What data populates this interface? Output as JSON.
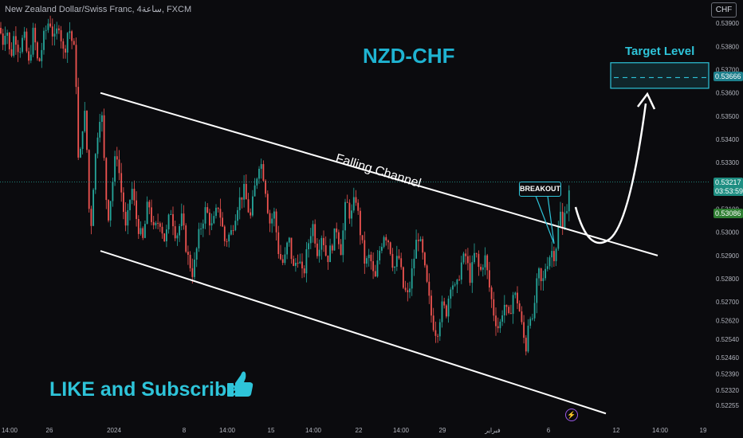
{
  "header": {
    "symbol_title": "New Zealand Dollar/Swiss Franc, 4ساعة, FXCM",
    "currency": "CHF"
  },
  "annotations": {
    "title": "NZD-CHF",
    "channel_label": "Falling Channel",
    "breakout_label": "BREAKOUT",
    "target_label": "Target Level",
    "cta": "LIKE and Subscribe"
  },
  "price_tags": {
    "target": "0.53666",
    "current": "0.53217",
    "countdown": "03:53:59",
    "previous": "0.53086"
  },
  "icons": {
    "cta": "thumbs-up-icon",
    "alert": "lightning-icon"
  },
  "colors": {
    "bull": "#26a69a",
    "bear": "#ef5350",
    "accent": "#2ec4d9",
    "channel": "#ffffff",
    "background": "#0b0b0e"
  },
  "chart_data": {
    "type": "candlestick",
    "y_ticks": [
      "0.53900",
      "0.53800",
      "0.53700",
      "0.53600",
      "0.53500",
      "0.53400",
      "0.53300",
      "0.53200",
      "0.53100",
      "0.53000",
      "0.52900",
      "0.52800",
      "0.52700",
      "0.52620",
      "0.52540",
      "0.52460",
      "0.52390",
      "0.52320",
      "0.52255"
    ],
    "x_ticks": [
      "14:00",
      "26",
      "2024",
      "8",
      "14:00",
      "15",
      "14:00",
      "22",
      "14:00",
      "29",
      "فبراير",
      "6",
      "12",
      "14:00",
      "19"
    ],
    "ylim": [
      0.5219,
      0.54
    ],
    "close_path": [
      [
        0,
        0.5388
      ],
      [
        3,
        0.5381
      ],
      [
        8,
        0.539
      ],
      [
        13,
        0.5374
      ],
      [
        18,
        0.5386
      ],
      [
        24,
        0.5378
      ],
      [
        30,
        0.5385
      ],
      [
        36,
        0.5372
      ],
      [
        42,
        0.5387
      ],
      [
        48,
        0.5371
      ],
      [
        55,
        0.5384
      ],
      [
        62,
        0.5392
      ],
      [
        68,
        0.5382
      ],
      [
        74,
        0.539
      ],
      [
        80,
        0.5376
      ],
      [
        86,
        0.5389
      ],
      [
        93,
        0.5378
      ],
      [
        96,
        0.5362
      ],
      [
        99,
        0.532
      ],
      [
        102,
        0.5342
      ],
      [
        106,
        0.5352
      ],
      [
        110,
        0.533
      ],
      [
        113,
        0.5295
      ],
      [
        116,
        0.5315
      ],
      [
        119,
        0.533
      ],
      [
        123,
        0.5345
      ],
      [
        127,
        0.5355
      ],
      [
        131,
        0.5328
      ],
      [
        135,
        0.5305
      ],
      [
        140,
        0.5318
      ],
      [
        146,
        0.5336
      ],
      [
        152,
        0.5318
      ],
      [
        158,
        0.53
      ],
      [
        165,
        0.532
      ],
      [
        172,
        0.5304
      ],
      [
        179,
        0.5296
      ],
      [
        186,
        0.5314
      ],
      [
        193,
        0.53
      ],
      [
        200,
        0.5306
      ],
      [
        207,
        0.5296
      ],
      [
        214,
        0.531
      ],
      [
        221,
        0.5298
      ],
      [
        228,
        0.5306
      ],
      [
        235,
        0.529
      ],
      [
        242,
        0.5282
      ],
      [
        250,
        0.53
      ],
      [
        258,
        0.531
      ],
      [
        266,
        0.5302
      ],
      [
        274,
        0.5312
      ],
      [
        282,
        0.5296
      ],
      [
        290,
        0.53
      ],
      [
        298,
        0.5312
      ],
      [
        306,
        0.5318
      ],
      [
        314,
        0.5306
      ],
      [
        320,
        0.532
      ],
      [
        326,
        0.5332
      ],
      [
        332,
        0.5322
      ],
      [
        338,
        0.5304
      ],
      [
        344,
        0.5308
      ],
      [
        350,
        0.529
      ],
      [
        356,
        0.5286
      ],
      [
        362,
        0.5298
      ],
      [
        368,
        0.5284
      ],
      [
        374,
        0.529
      ],
      [
        380,
        0.528
      ],
      [
        386,
        0.5294
      ],
      [
        392,
        0.5304
      ],
      [
        398,
        0.5292
      ],
      [
        404,
        0.53
      ],
      [
        410,
        0.5288
      ],
      [
        416,
        0.5294
      ],
      [
        422,
        0.5302
      ],
      [
        428,
        0.5292
      ],
      [
        434,
        0.5314
      ],
      [
        440,
        0.5306
      ],
      [
        446,
        0.5316
      ],
      [
        452,
        0.53
      ],
      [
        458,
        0.5286
      ],
      [
        464,
        0.529
      ],
      [
        470,
        0.5278
      ],
      [
        476,
        0.5292
      ],
      [
        482,
        0.53
      ],
      [
        488,
        0.5296
      ],
      [
        494,
        0.5284
      ],
      [
        500,
        0.529
      ],
      [
        506,
        0.5276
      ],
      [
        512,
        0.5272
      ],
      [
        518,
        0.5286
      ],
      [
        524,
        0.53
      ],
      [
        530,
        0.529
      ],
      [
        536,
        0.5276
      ],
      [
        542,
        0.5262
      ],
      [
        548,
        0.5256
      ],
      [
        554,
        0.5268
      ],
      [
        560,
        0.5266
      ],
      [
        566,
        0.528
      ],
      [
        572,
        0.5274
      ],
      [
        578,
        0.5286
      ],
      [
        584,
        0.529
      ],
      [
        590,
        0.528
      ],
      [
        596,
        0.5292
      ],
      [
        602,
        0.5282
      ],
      [
        608,
        0.529
      ],
      [
        614,
        0.5276
      ],
      [
        620,
        0.5264
      ],
      [
        626,
        0.5258
      ],
      [
        632,
        0.527
      ],
      [
        638,
        0.5262
      ],
      [
        644,
        0.5274
      ],
      [
        650,
        0.527
      ],
      [
        656,
        0.5256
      ],
      [
        660,
        0.525
      ],
      [
        664,
        0.5268
      ],
      [
        668,
        0.526
      ],
      [
        672,
        0.5275
      ],
      [
        676,
        0.5282
      ],
      [
        680,
        0.5276
      ],
      [
        684,
        0.5285
      ],
      [
        688,
        0.5289
      ],
      [
        692,
        0.5292
      ],
      [
        696,
        0.529
      ],
      [
        700,
        0.5301
      ],
      [
        703,
        0.5308
      ],
      [
        706,
        0.53
      ],
      [
        709,
        0.5314
      ],
      [
        712,
        0.5309
      ],
      [
        715,
        0.53217
      ]
    ],
    "channel_upper": [
      [
        0.536
      ],
      [
        0.529
      ]
    ],
    "channel_lower": [
      [
        0.5292
      ],
      [
        0.5222
      ]
    ],
    "target_zone": [
      0.5362,
      0.5373
    ],
    "target_level": 0.53666
  }
}
